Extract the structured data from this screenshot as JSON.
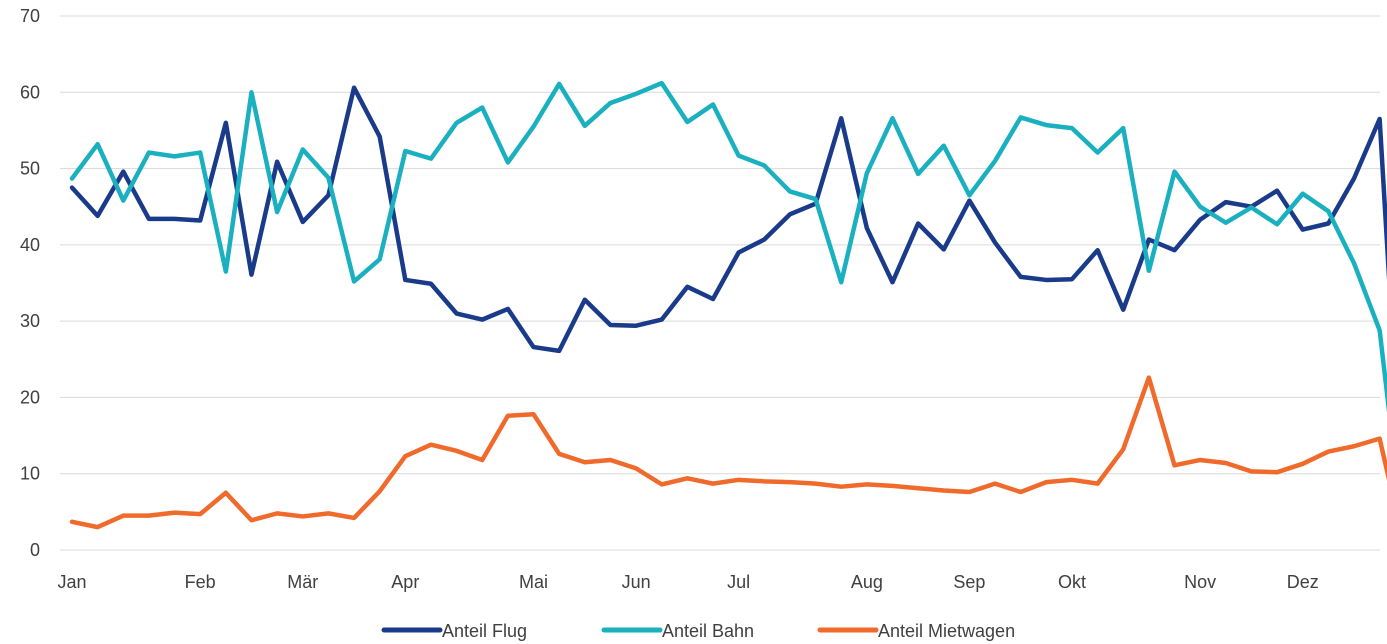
{
  "chart_data": {
    "type": "line",
    "title": "",
    "xlabel": "",
    "ylabel": "",
    "ylim": [
      0,
      70
    ],
    "yticks": [
      0,
      10,
      20,
      30,
      40,
      50,
      60,
      70
    ],
    "grid": true,
    "legend_position": "bottom",
    "point_count": 53,
    "month_labels": [
      {
        "label": "Jan",
        "index": 0
      },
      {
        "label": "Feb",
        "index": 5
      },
      {
        "label": "Mär",
        "index": 9
      },
      {
        "label": "Apr",
        "index": 13
      },
      {
        "label": "Mai",
        "index": 18
      },
      {
        "label": "Jun",
        "index": 22
      },
      {
        "label": "Jul",
        "index": 26
      },
      {
        "label": "Aug",
        "index": 31
      },
      {
        "label": "Sep",
        "index": 35
      },
      {
        "label": "Okt",
        "index": 39
      },
      {
        "label": "Nov",
        "index": 44
      },
      {
        "label": "Dez",
        "index": 48
      }
    ],
    "series": [
      {
        "name": "Anteil Flug",
        "color": "#1a3a8a",
        "values": [
          47.5,
          43.8,
          49.6,
          43.4,
          43.4,
          43.2,
          56.0,
          36.1,
          50.9,
          43.0,
          46.5,
          60.6,
          54.2,
          35.4,
          34.9,
          31.0,
          30.2,
          31.6,
          26.6,
          26.1,
          32.8,
          29.5,
          29.4,
          30.2,
          34.5,
          32.9,
          39.0,
          40.7,
          44.0,
          45.4,
          56.6,
          42.2,
          35.1,
          42.8,
          39.4,
          45.8,
          40.3,
          35.8,
          35.4,
          35.5,
          39.3,
          31.5,
          40.7,
          39.3,
          43.3,
          45.6,
          45.0,
          47.1,
          42.0,
          42.8,
          48.7,
          56.5,
          0
        ]
      },
      {
        "name": "Anteil Bahn",
        "color": "#1ab0c0",
        "values": [
          48.7,
          53.2,
          45.8,
          52.1,
          51.6,
          52.1,
          36.5,
          60.0,
          44.3,
          52.5,
          48.8,
          35.2,
          38.1,
          52.3,
          51.3,
          56.0,
          58.0,
          50.8,
          55.5,
          61.1,
          55.6,
          58.6,
          59.8,
          61.2,
          56.1,
          58.4,
          51.7,
          50.4,
          47.0,
          46.0,
          35.1,
          49.4,
          56.6,
          49.3,
          53.0,
          46.5,
          51.0,
          56.7,
          55.7,
          55.3,
          52.1,
          55.3,
          36.6,
          49.6,
          45.0,
          42.9,
          44.9,
          42.7,
          46.7,
          44.4,
          37.6,
          28.8,
          0
        ]
      },
      {
        "name": "Anteil Mietwagen",
        "color": "#f06a2b",
        "values": [
          3.7,
          3.0,
          4.5,
          4.5,
          4.9,
          4.7,
          7.5,
          3.9,
          4.8,
          4.4,
          4.8,
          4.2,
          7.7,
          12.3,
          13.8,
          13.0,
          11.8,
          17.6,
          17.8,
          12.6,
          11.5,
          11.8,
          10.7,
          8.6,
          9.4,
          8.7,
          9.2,
          9.0,
          8.9,
          8.7,
          8.3,
          8.6,
          8.4,
          8.1,
          7.8,
          7.6,
          8.7,
          7.6,
          8.9,
          9.2,
          8.7,
          13.2,
          22.6,
          11.1,
          11.8,
          11.4,
          10.3,
          10.2,
          11.3,
          12.9,
          13.6,
          14.6,
          0
        ]
      }
    ]
  }
}
